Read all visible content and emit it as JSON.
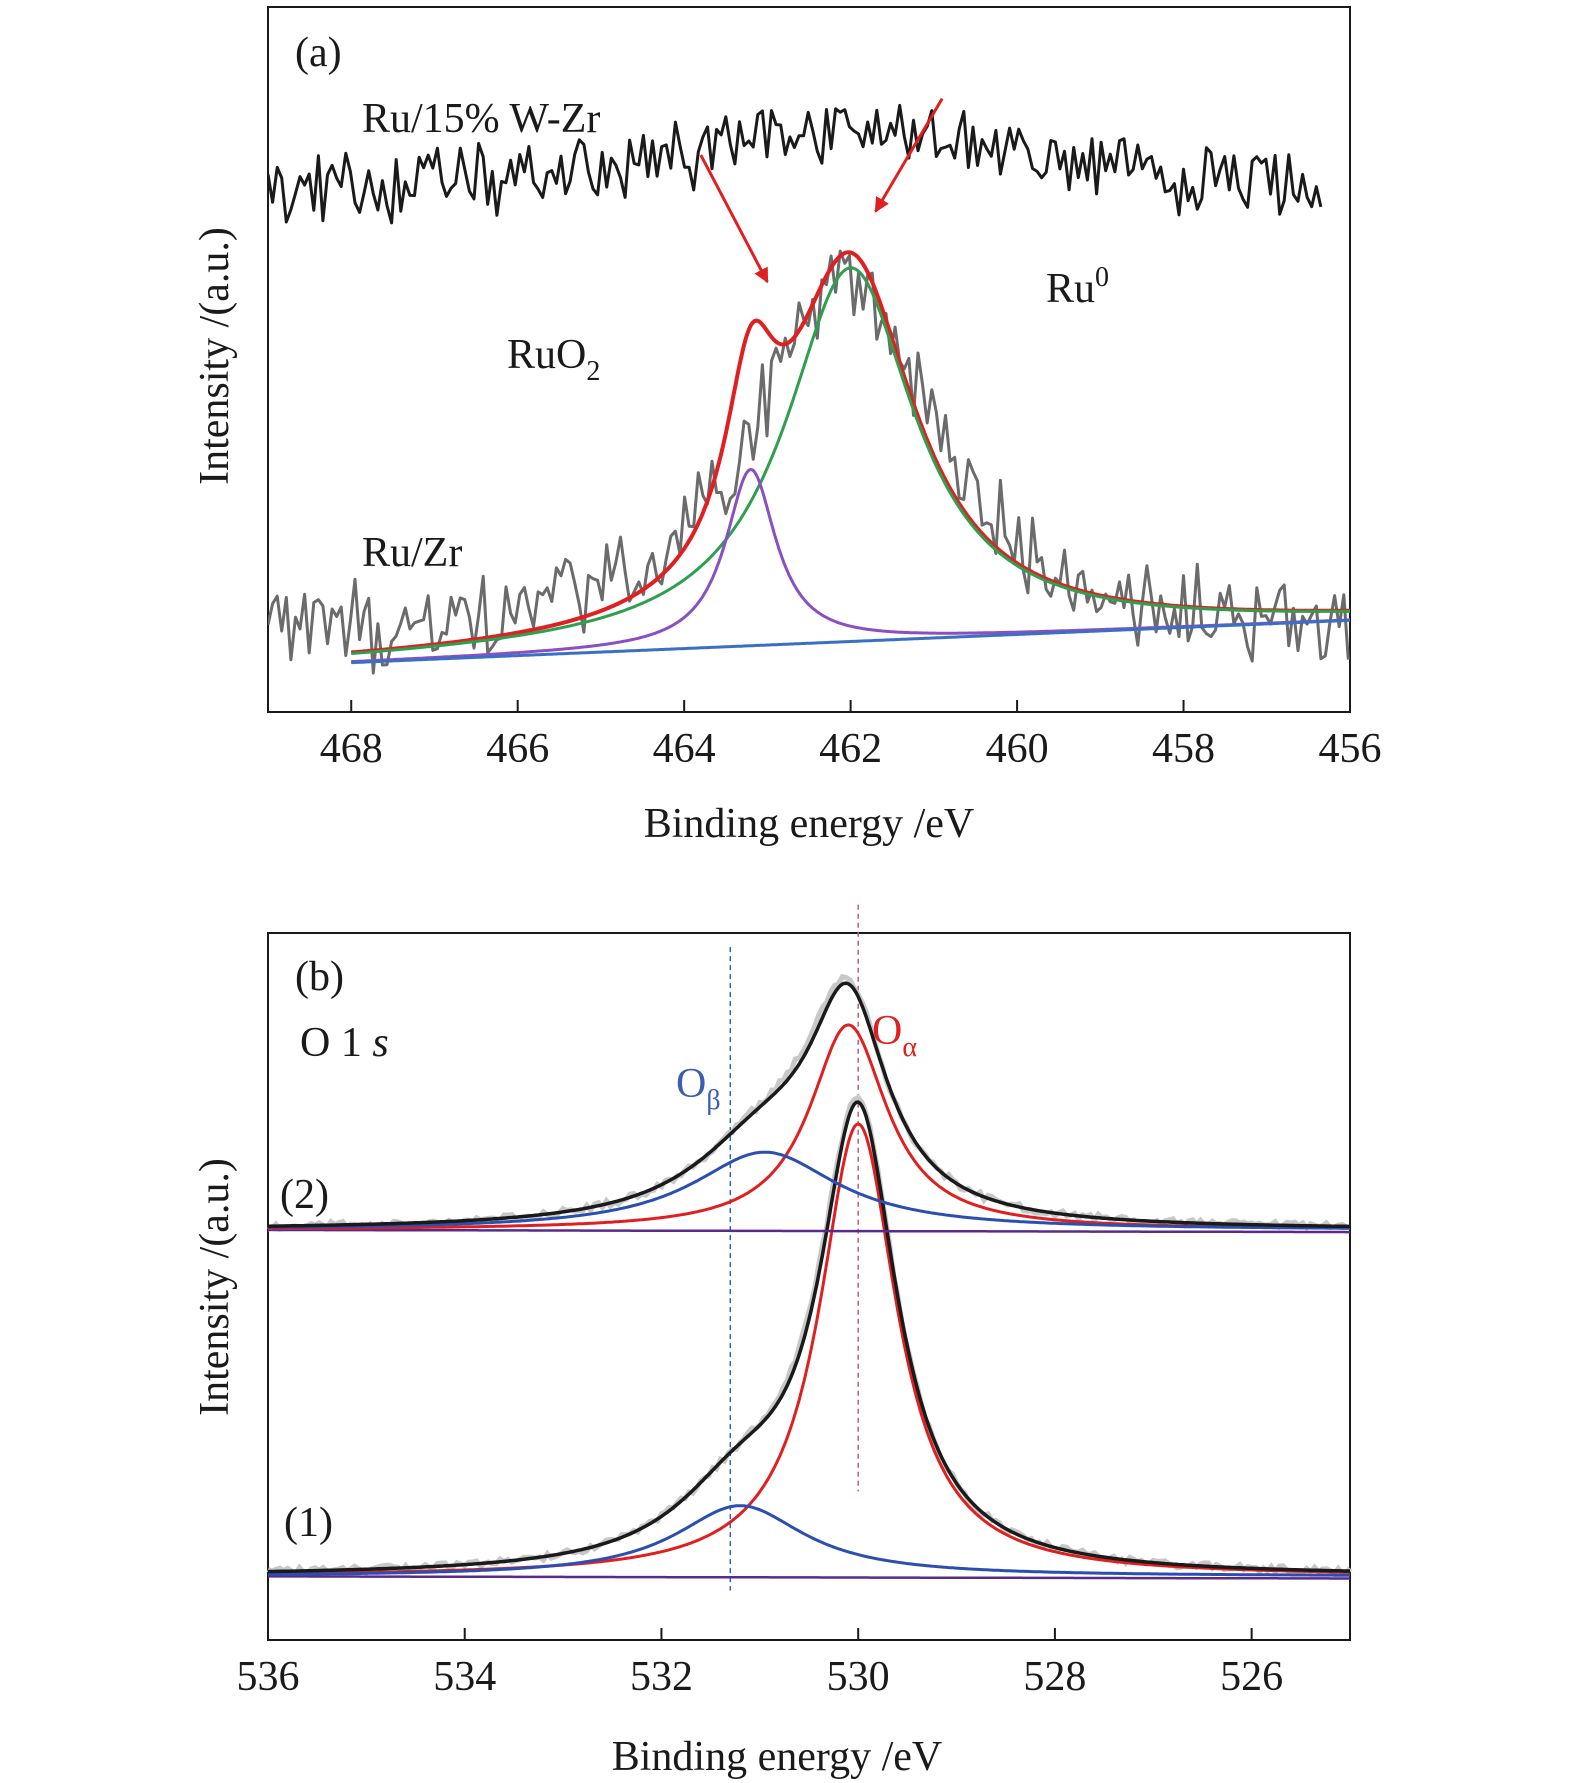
{
  "chart_data": [
    {
      "type": "line",
      "panel_label": "(a)",
      "xlabel": "Binding energy /eV",
      "ylabel": "Intensity /(a.u.)",
      "xlim": [
        469,
        456
      ],
      "x_reversed": true,
      "x_ticks": [
        468,
        466,
        464,
        462,
        460,
        458,
        456
      ],
      "y_ticks_shown": false,
      "annotations": {
        "sample_top": "Ru/15% W-Zr",
        "sample_bottom": "Ru/Zr",
        "ruo2_base": "RuO",
        "ruo2_sub": "2",
        "ru0_base": "Ru",
        "ru0_sup": "0"
      },
      "arrows": [
        {
          "label": "RuO2",
          "from": [
            463.8,
            0.79
          ],
          "to": [
            463.0,
            0.61
          ]
        },
        {
          "label": "Ru0",
          "from": [
            460.9,
            0.87
          ],
          "to": [
            461.7,
            0.71
          ]
        }
      ],
      "series": [
        {
          "role": "raw Ru/15% W-Zr",
          "color": "#1a1a1a",
          "x_range": [
            469,
            456.3
          ],
          "baseline": 0.73,
          "noise": 0.045,
          "peak": {
            "center": 462,
            "height": 0.1,
            "width": 2.5
          }
        },
        {
          "role": "raw Ru/Zr",
          "color": "#6b6b6b",
          "x_range": [
            469,
            456
          ],
          "baseline": 0.1,
          "noise": 0.055,
          "peak": {
            "center": 462.1,
            "height": 0.52,
            "width": 1.3
          }
        },
        {
          "role": "fit envelope",
          "color": "#e02020",
          "x_range": [
            468,
            456
          ],
          "components": [
            {
              "center": 463.2,
              "height": 0.25,
              "width": 0.37
            },
            {
              "center": 462.0,
              "height": 0.53,
              "width": 0.95
            }
          ]
        },
        {
          "role": "Ru0 component",
          "color": "#2e9e4f",
          "x_range": [
            468,
            456
          ],
          "components": [
            {
              "center": 462.0,
              "height": 0.53,
              "width": 0.95
            }
          ]
        },
        {
          "role": "RuO2 component",
          "color": "#8a4fc0",
          "x_range": [
            468,
            456
          ],
          "components": [
            {
              "center": 463.2,
              "height": 0.25,
              "width": 0.37
            }
          ]
        },
        {
          "role": "background",
          "color": "#3a6fc4",
          "x_range": [
            468,
            456
          ],
          "linear": [
            0.07,
            0.13
          ]
        }
      ]
    },
    {
      "type": "line",
      "panel_label": "(b)",
      "xlabel": "Binding energy /eV",
      "ylabel": "Intensity /(a.u.)",
      "xlim": [
        536,
        525
      ],
      "x_reversed": true,
      "x_ticks": [
        536,
        534,
        532,
        530,
        528,
        526
      ],
      "y_ticks_shown": false,
      "annotations": {
        "core_level_main": "O 1 ",
        "core_level_italic": "s",
        "o_beta_base": "O",
        "o_beta_sub": "β",
        "o_alpha_base": "O",
        "o_alpha_sub": "α",
        "sample_1": "(1)",
        "sample_2": "(2)"
      },
      "reference_lines": [
        {
          "label": "Oβ",
          "x": 531.3,
          "color": "#3a5fae"
        },
        {
          "label": "Oα",
          "x": 530.0,
          "color": "#c06070"
        }
      ],
      "spectra": [
        {
          "name": "(1)",
          "baseline": 0.09,
          "components": [
            {
              "label": "Oα",
              "center": 530.0,
              "height": 0.64,
              "width": 0.48,
              "color": "#e02020"
            },
            {
              "label": "Oβ",
              "center": 531.2,
              "height": 0.1,
              "width": 0.8,
              "color": "#2a4fb0"
            }
          ],
          "raw_color": "#c8c8c8",
          "fit_color": "#1a1a1a",
          "background_color": "#5a2a8a"
        },
        {
          "name": "(2)",
          "baseline": 0.58,
          "components": [
            {
              "label": "Oα",
              "center": 530.1,
              "height": 0.29,
              "width": 0.48,
              "color": "#e02020"
            },
            {
              "label": "Oβ",
              "center": 530.95,
              "height": 0.11,
              "width": 0.9,
              "color": "#2a4fb0"
            }
          ],
          "raw_color": "#c8c8c8",
          "fit_color": "#1a1a1a",
          "background_color": "#5a2a8a"
        }
      ]
    }
  ]
}
